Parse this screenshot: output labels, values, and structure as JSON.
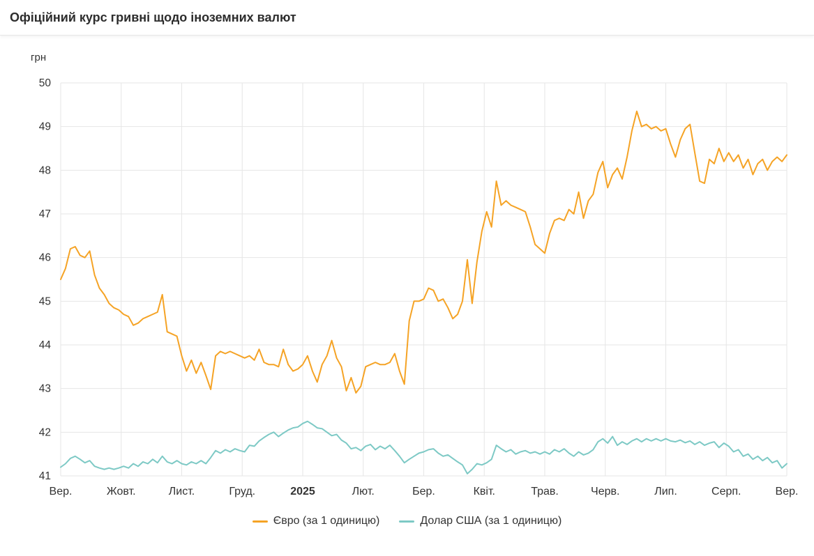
{
  "header": {
    "title": "Офіційний курс гривні щодо іноземних валют"
  },
  "chart_data": {
    "type": "line",
    "title": "Офіційний курс гривні щодо іноземних валют",
    "unit_label": "грн",
    "ylim": [
      41,
      50
    ],
    "y_ticks": [
      41,
      42,
      43,
      44,
      45,
      46,
      47,
      48,
      49,
      50
    ],
    "x_tick_labels": [
      "Вер.",
      "Жовт.",
      "Лист.",
      "Груд.",
      "2025",
      "Лют.",
      "Бер.",
      "Квіт.",
      "Трав.",
      "Черв.",
      "Лип.",
      "Серп.",
      "Вер."
    ],
    "bold_x_label": "2025",
    "grid": true,
    "legend_position": "bottom",
    "colors": {
      "euro": "#F5A325",
      "dollar": "#7DC9C5",
      "grid": "#E6E6E6",
      "text": "#333333"
    },
    "series": [
      {
        "name": "Євро (за 1 одиницю)",
        "color_key": "euro",
        "points": [
          [
            0,
            45.5
          ],
          [
            0.08,
            45.75
          ],
          [
            0.16,
            46.2
          ],
          [
            0.24,
            46.25
          ],
          [
            0.32,
            46.05
          ],
          [
            0.4,
            46
          ],
          [
            0.48,
            46.15
          ],
          [
            0.56,
            45.6
          ],
          [
            0.64,
            45.3
          ],
          [
            0.72,
            45.15
          ],
          [
            0.8,
            44.95
          ],
          [
            0.88,
            44.85
          ],
          [
            0.96,
            44.8
          ],
          [
            1.04,
            44.7
          ],
          [
            1.12,
            44.65
          ],
          [
            1.2,
            44.45
          ],
          [
            1.28,
            44.5
          ],
          [
            1.36,
            44.6
          ],
          [
            1.44,
            44.65
          ],
          [
            1.52,
            44.7
          ],
          [
            1.6,
            44.75
          ],
          [
            1.68,
            45.15
          ],
          [
            1.76,
            44.3
          ],
          [
            1.84,
            44.25
          ],
          [
            1.92,
            44.2
          ],
          [
            2,
            43.75
          ],
          [
            2.08,
            43.4
          ],
          [
            2.16,
            43.65
          ],
          [
            2.24,
            43.35
          ],
          [
            2.32,
            43.6
          ],
          [
            2.4,
            43.3
          ],
          [
            2.48,
            42.98
          ],
          [
            2.56,
            43.75
          ],
          [
            2.64,
            43.85
          ],
          [
            2.72,
            43.8
          ],
          [
            2.8,
            43.85
          ],
          [
            2.88,
            43.8
          ],
          [
            2.96,
            43.75
          ],
          [
            3.04,
            43.7
          ],
          [
            3.12,
            43.75
          ],
          [
            3.2,
            43.65
          ],
          [
            3.28,
            43.9
          ],
          [
            3.36,
            43.6
          ],
          [
            3.44,
            43.55
          ],
          [
            3.52,
            43.55
          ],
          [
            3.6,
            43.5
          ],
          [
            3.68,
            43.9
          ],
          [
            3.76,
            43.55
          ],
          [
            3.84,
            43.4
          ],
          [
            3.92,
            43.45
          ],
          [
            4,
            43.55
          ],
          [
            4.08,
            43.75
          ],
          [
            4.16,
            43.4
          ],
          [
            4.24,
            43.15
          ],
          [
            4.32,
            43.55
          ],
          [
            4.4,
            43.75
          ],
          [
            4.48,
            44.1
          ],
          [
            4.56,
            43.7
          ],
          [
            4.64,
            43.5
          ],
          [
            4.72,
            42.95
          ],
          [
            4.8,
            43.25
          ],
          [
            4.88,
            42.9
          ],
          [
            4.96,
            43.05
          ],
          [
            5.04,
            43.5
          ],
          [
            5.12,
            43.55
          ],
          [
            5.2,
            43.6
          ],
          [
            5.28,
            43.55
          ],
          [
            5.36,
            43.55
          ],
          [
            5.44,
            43.6
          ],
          [
            5.52,
            43.8
          ],
          [
            5.6,
            43.4
          ],
          [
            5.68,
            43.1
          ],
          [
            5.76,
            44.55
          ],
          [
            5.84,
            45
          ],
          [
            5.92,
            45
          ],
          [
            6,
            45.05
          ],
          [
            6.08,
            45.3
          ],
          [
            6.16,
            45.25
          ],
          [
            6.24,
            45
          ],
          [
            6.32,
            45.05
          ],
          [
            6.4,
            44.85
          ],
          [
            6.48,
            44.6
          ],
          [
            6.56,
            44.7
          ],
          [
            6.64,
            45
          ],
          [
            6.72,
            45.95
          ],
          [
            6.8,
            44.95
          ],
          [
            6.88,
            45.9
          ],
          [
            6.96,
            46.6
          ],
          [
            7.04,
            47.05
          ],
          [
            7.12,
            46.7
          ],
          [
            7.2,
            47.75
          ],
          [
            7.28,
            47.2
          ],
          [
            7.36,
            47.3
          ],
          [
            7.44,
            47.2
          ],
          [
            7.52,
            47.15
          ],
          [
            7.6,
            47.1
          ],
          [
            7.68,
            47.05
          ],
          [
            7.76,
            46.7
          ],
          [
            7.84,
            46.3
          ],
          [
            7.92,
            46.2
          ],
          [
            8,
            46.1
          ],
          [
            8.08,
            46.55
          ],
          [
            8.16,
            46.85
          ],
          [
            8.24,
            46.9
          ],
          [
            8.32,
            46.85
          ],
          [
            8.4,
            47.1
          ],
          [
            8.48,
            47
          ],
          [
            8.56,
            47.5
          ],
          [
            8.64,
            46.9
          ],
          [
            8.72,
            47.3
          ],
          [
            8.8,
            47.45
          ],
          [
            8.88,
            47.95
          ],
          [
            8.96,
            48.2
          ],
          [
            9.04,
            47.6
          ],
          [
            9.12,
            47.9
          ],
          [
            9.2,
            48.05
          ],
          [
            9.28,
            47.8
          ],
          [
            9.36,
            48.3
          ],
          [
            9.44,
            48.9
          ],
          [
            9.52,
            49.35
          ],
          [
            9.6,
            49
          ],
          [
            9.68,
            49.05
          ],
          [
            9.76,
            48.95
          ],
          [
            9.84,
            49
          ],
          [
            9.92,
            48.9
          ],
          [
            10,
            48.95
          ],
          [
            10.08,
            48.6
          ],
          [
            10.16,
            48.3
          ],
          [
            10.24,
            48.7
          ],
          [
            10.32,
            48.95
          ],
          [
            10.4,
            49.05
          ],
          [
            10.48,
            48.4
          ],
          [
            10.56,
            47.75
          ],
          [
            10.64,
            47.7
          ],
          [
            10.72,
            48.25
          ],
          [
            10.8,
            48.15
          ],
          [
            10.88,
            48.5
          ],
          [
            10.96,
            48.2
          ],
          [
            11.04,
            48.4
          ],
          [
            11.12,
            48.2
          ],
          [
            11.2,
            48.35
          ],
          [
            11.28,
            48.05
          ],
          [
            11.36,
            48.25
          ],
          [
            11.44,
            47.9
          ],
          [
            11.52,
            48.15
          ],
          [
            11.6,
            48.25
          ],
          [
            11.68,
            48
          ],
          [
            11.76,
            48.2
          ],
          [
            11.84,
            48.3
          ],
          [
            11.92,
            48.2
          ],
          [
            12,
            48.35
          ]
        ]
      },
      {
        "name": "Долар США (за 1 одиницю)",
        "color_key": "dollar",
        "points": [
          [
            0,
            41.2
          ],
          [
            0.08,
            41.28
          ],
          [
            0.16,
            41.4
          ],
          [
            0.24,
            41.45
          ],
          [
            0.32,
            41.38
          ],
          [
            0.4,
            41.3
          ],
          [
            0.48,
            41.35
          ],
          [
            0.56,
            41.22
          ],
          [
            0.64,
            41.18
          ],
          [
            0.72,
            41.15
          ],
          [
            0.8,
            41.18
          ],
          [
            0.88,
            41.15
          ],
          [
            0.96,
            41.18
          ],
          [
            1.04,
            41.22
          ],
          [
            1.12,
            41.18
          ],
          [
            1.2,
            41.28
          ],
          [
            1.28,
            41.22
          ],
          [
            1.36,
            41.32
          ],
          [
            1.44,
            41.28
          ],
          [
            1.52,
            41.38
          ],
          [
            1.6,
            41.3
          ],
          [
            1.68,
            41.45
          ],
          [
            1.76,
            41.32
          ],
          [
            1.84,
            41.28
          ],
          [
            1.92,
            41.35
          ],
          [
            2,
            41.28
          ],
          [
            2.08,
            41.25
          ],
          [
            2.16,
            41.32
          ],
          [
            2.24,
            41.28
          ],
          [
            2.32,
            41.35
          ],
          [
            2.4,
            41.28
          ],
          [
            2.48,
            41.42
          ],
          [
            2.56,
            41.58
          ],
          [
            2.64,
            41.52
          ],
          [
            2.72,
            41.6
          ],
          [
            2.8,
            41.55
          ],
          [
            2.88,
            41.62
          ],
          [
            2.96,
            41.58
          ],
          [
            3.04,
            41.55
          ],
          [
            3.12,
            41.7
          ],
          [
            3.2,
            41.68
          ],
          [
            3.28,
            41.8
          ],
          [
            3.36,
            41.88
          ],
          [
            3.44,
            41.95
          ],
          [
            3.52,
            42
          ],
          [
            3.6,
            41.9
          ],
          [
            3.68,
            41.98
          ],
          [
            3.76,
            42.05
          ],
          [
            3.84,
            42.1
          ],
          [
            3.92,
            42.12
          ],
          [
            4,
            42.2
          ],
          [
            4.08,
            42.25
          ],
          [
            4.16,
            42.18
          ],
          [
            4.24,
            42.1
          ],
          [
            4.32,
            42.08
          ],
          [
            4.4,
            42
          ],
          [
            4.48,
            41.92
          ],
          [
            4.56,
            41.95
          ],
          [
            4.64,
            41.82
          ],
          [
            4.72,
            41.75
          ],
          [
            4.8,
            41.62
          ],
          [
            4.88,
            41.65
          ],
          [
            4.96,
            41.58
          ],
          [
            5.04,
            41.68
          ],
          [
            5.12,
            41.72
          ],
          [
            5.2,
            41.6
          ],
          [
            5.28,
            41.68
          ],
          [
            5.36,
            41.62
          ],
          [
            5.44,
            41.7
          ],
          [
            5.52,
            41.58
          ],
          [
            5.6,
            41.45
          ],
          [
            5.68,
            41.3
          ],
          [
            5.76,
            41.38
          ],
          [
            5.84,
            41.45
          ],
          [
            5.92,
            41.52
          ],
          [
            6,
            41.55
          ],
          [
            6.08,
            41.6
          ],
          [
            6.16,
            41.62
          ],
          [
            6.24,
            41.52
          ],
          [
            6.32,
            41.45
          ],
          [
            6.4,
            41.48
          ],
          [
            6.48,
            41.4
          ],
          [
            6.56,
            41.32
          ],
          [
            6.64,
            41.25
          ],
          [
            6.72,
            41.05
          ],
          [
            6.8,
            41.15
          ],
          [
            6.88,
            41.28
          ],
          [
            6.96,
            41.25
          ],
          [
            7.04,
            41.3
          ],
          [
            7.12,
            41.38
          ],
          [
            7.2,
            41.7
          ],
          [
            7.28,
            41.62
          ],
          [
            7.36,
            41.55
          ],
          [
            7.44,
            41.6
          ],
          [
            7.52,
            41.5
          ],
          [
            7.6,
            41.55
          ],
          [
            7.68,
            41.58
          ],
          [
            7.76,
            41.52
          ],
          [
            7.84,
            41.55
          ],
          [
            7.92,
            41.5
          ],
          [
            8,
            41.55
          ],
          [
            8.08,
            41.5
          ],
          [
            8.16,
            41.6
          ],
          [
            8.24,
            41.55
          ],
          [
            8.32,
            41.62
          ],
          [
            8.4,
            41.52
          ],
          [
            8.48,
            41.45
          ],
          [
            8.56,
            41.55
          ],
          [
            8.64,
            41.48
          ],
          [
            8.72,
            41.52
          ],
          [
            8.8,
            41.6
          ],
          [
            8.88,
            41.78
          ],
          [
            8.96,
            41.85
          ],
          [
            9.04,
            41.75
          ],
          [
            9.12,
            41.9
          ],
          [
            9.2,
            41.7
          ],
          [
            9.28,
            41.78
          ],
          [
            9.36,
            41.72
          ],
          [
            9.44,
            41.8
          ],
          [
            9.52,
            41.85
          ],
          [
            9.6,
            41.78
          ],
          [
            9.68,
            41.85
          ],
          [
            9.76,
            41.8
          ],
          [
            9.84,
            41.85
          ],
          [
            9.92,
            41.8
          ],
          [
            10,
            41.85
          ],
          [
            10.08,
            41.8
          ],
          [
            10.16,
            41.78
          ],
          [
            10.24,
            41.82
          ],
          [
            10.32,
            41.76
          ],
          [
            10.4,
            41.8
          ],
          [
            10.48,
            41.72
          ],
          [
            10.56,
            41.78
          ],
          [
            10.64,
            41.7
          ],
          [
            10.72,
            41.75
          ],
          [
            10.8,
            41.78
          ],
          [
            10.88,
            41.65
          ],
          [
            10.96,
            41.75
          ],
          [
            11.04,
            41.68
          ],
          [
            11.12,
            41.55
          ],
          [
            11.2,
            41.6
          ],
          [
            11.28,
            41.45
          ],
          [
            11.36,
            41.5
          ],
          [
            11.44,
            41.38
          ],
          [
            11.52,
            41.45
          ],
          [
            11.6,
            41.35
          ],
          [
            11.68,
            41.42
          ],
          [
            11.76,
            41.3
          ],
          [
            11.84,
            41.35
          ],
          [
            11.92,
            41.18
          ],
          [
            12,
            41.28
          ]
        ]
      }
    ]
  }
}
